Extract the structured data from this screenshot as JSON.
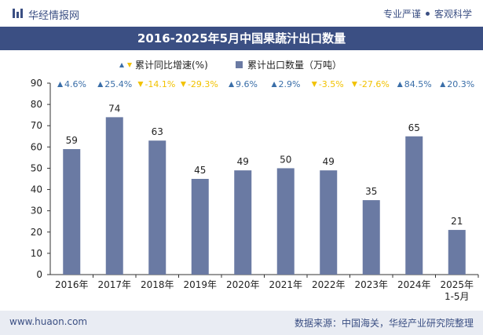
{
  "header": {
    "brand": "华经情报网",
    "tagline_left": "专业严谨",
    "tagline_right": "客观科学"
  },
  "footer": {
    "site": "www.huaon.com",
    "source": "数据来源：中国海关，华经产业研究院整理"
  },
  "colors": {
    "brand": "#3b4f83",
    "bar": "#6a7aa3",
    "up": "#3a6ea8",
    "down": "#f2c200"
  },
  "icons": {
    "logo": "bar-logo-icon",
    "up": "triangle-up-icon",
    "down": "triangle-down-icon"
  },
  "chart_data": {
    "type": "bar",
    "title": "2016-2025年5月中国果蔬汁出口数量",
    "categories": [
      "2016年",
      "2017年",
      "2018年",
      "2019年",
      "2020年",
      "2021年",
      "2022年",
      "2023年",
      "2024年",
      "2025年\n1-5月"
    ],
    "series": [
      {
        "name": "累计出口数量（万吨）",
        "values": [
          59,
          74,
          63,
          45,
          49,
          50,
          49,
          35,
          65,
          21
        ]
      }
    ],
    "growth": {
      "name": "累计同比增速(%)",
      "labels": [
        "4.6%",
        "25.4%",
        "-14.1%",
        "-29.3%",
        "9.6%",
        "2.9%",
        "-3.5%",
        "-27.6%",
        "84.5%",
        "20.3%"
      ],
      "direction": [
        "up",
        "up",
        "down",
        "down",
        "up",
        "up",
        "down",
        "down",
        "up",
        "up"
      ]
    },
    "ylim": [
      0,
      90
    ],
    "yticks": [
      0,
      10,
      20,
      30,
      40,
      50,
      60,
      70,
      80,
      90
    ],
    "xlabel": "",
    "ylabel": "",
    "legend": "top-center",
    "grid": false
  }
}
